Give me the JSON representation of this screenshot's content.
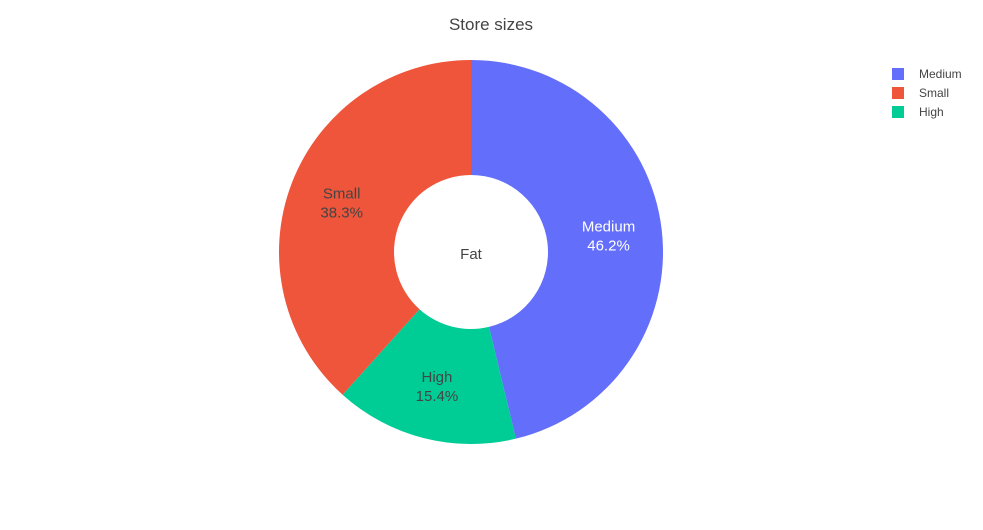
{
  "chart_data": {
    "type": "pie",
    "title": "Store sizes",
    "center_label": "Fat",
    "hole": true,
    "slices": [
      {
        "label": "Medium",
        "value": 46.2,
        "percent_text": "46.2%",
        "color": "#636efa",
        "text_color": "#ffffff"
      },
      {
        "label": "High",
        "value": 15.4,
        "percent_text": "15.4%",
        "color": "#00cc96",
        "text_color": "#444444"
      },
      {
        "label": "Small",
        "value": 38.3,
        "percent_text": "38.3%",
        "color": "#ef553b",
        "text_color": "#444444"
      }
    ],
    "legend": [
      {
        "label": "Medium",
        "color": "#636efa"
      },
      {
        "label": "Small",
        "color": "#ef553b"
      },
      {
        "label": "High",
        "color": "#00cc96"
      }
    ],
    "legend_position": "top-right"
  }
}
